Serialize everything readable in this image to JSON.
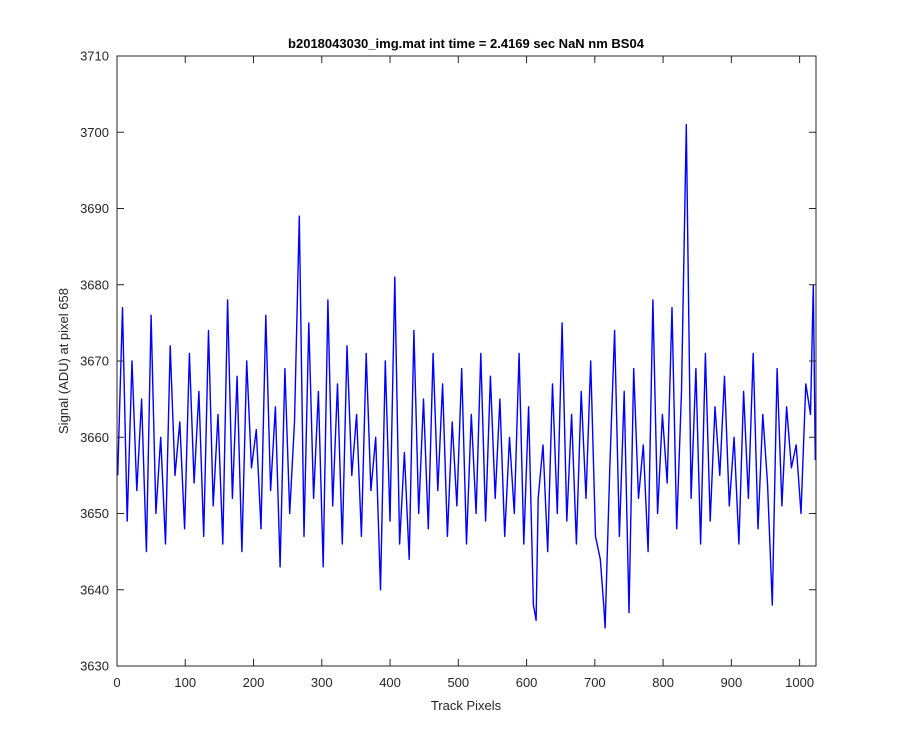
{
  "chart_data": {
    "type": "line",
    "title": "b2018043030_img.mat int time = 2.4169 sec  NaN nm BS04",
    "xlabel": "Track Pixels",
    "ylabel": "Signal (ADU) at pixel 658",
    "xlim": [
      0,
      1024
    ],
    "ylim": [
      3630,
      3710
    ],
    "xticks": [
      0,
      100,
      200,
      300,
      400,
      500,
      600,
      700,
      800,
      900,
      1000
    ],
    "yticks": [
      3630,
      3640,
      3650,
      3660,
      3670,
      3680,
      3690,
      3700,
      3710
    ],
    "grid": false,
    "legend": "none",
    "series": [
      {
        "color": "#0000ff",
        "x": [
          1,
          8,
          15,
          22,
          29,
          36,
          43,
          50,
          57,
          64,
          71,
          78,
          85,
          92,
          99,
          106,
          113,
          120,
          127,
          134,
          141,
          148,
          155,
          162,
          169,
          176,
          183,
          190,
          197,
          204,
          211,
          218,
          225,
          232,
          239,
          246,
          253,
          260,
          267,
          274,
          281,
          288,
          295,
          302,
          309,
          316,
          323,
          330,
          337,
          344,
          351,
          358,
          365,
          372,
          379,
          386,
          393,
          400,
          407,
          414,
          421,
          428,
          435,
          442,
          449,
          456,
          463,
          470,
          477,
          484,
          491,
          498,
          505,
          512,
          519,
          526,
          533,
          540,
          547,
          554,
          561,
          568,
          575,
          582,
          589,
          596,
          603,
          610,
          614,
          617,
          624,
          631,
          638,
          645,
          652,
          659,
          666,
          673,
          680,
          687,
          694,
          701,
          708,
          713,
          715,
          722,
          729,
          736,
          743,
          750,
          757,
          764,
          771,
          778,
          785,
          792,
          799,
          806,
          813,
          820,
          827,
          834,
          841,
          848,
          855,
          862,
          869,
          876,
          883,
          890,
          897,
          904,
          911,
          918,
          925,
          932,
          939,
          946,
          953,
          960,
          967,
          974,
          981,
          988,
          995,
          1002,
          1009,
          1016,
          1020,
          1023
        ],
        "y": [
          3655,
          3677,
          3649,
          3670,
          3653,
          3665,
          3645,
          3676,
          3650,
          3660,
          3646,
          3672,
          3655,
          3662,
          3648,
          3671,
          3654,
          3666,
          3647,
          3674,
          3651,
          3663,
          3646,
          3678,
          3652,
          3668,
          3645,
          3670,
          3656,
          3661,
          3648,
          3676,
          3653,
          3664,
          3643,
          3669,
          3650,
          3662,
          3689,
          3647,
          3675,
          3652,
          3666,
          3643,
          3678,
          3651,
          3667,
          3646,
          3672,
          3655,
          3663,
          3647,
          3671,
          3653,
          3660,
          3640,
          3670,
          3649,
          3681,
          3646,
          3658,
          3644,
          3674,
          3650,
          3665,
          3648,
          3671,
          3653,
          3667,
          3647,
          3662,
          3651,
          3669,
          3646,
          3663,
          3650,
          3671,
          3649,
          3668,
          3652,
          3665,
          3647,
          3660,
          3650,
          3671,
          3646,
          3664,
          3638,
          3636,
          3652,
          3659,
          3645,
          3667,
          3650,
          3675,
          3649,
          3663,
          3646,
          3666,
          3652,
          3670,
          3647,
          3644,
          3638,
          3635,
          3656,
          3674,
          3647,
          3666,
          3637,
          3669,
          3652,
          3659,
          3645,
          3678,
          3650,
          3663,
          3654,
          3677,
          3648,
          3666,
          3701,
          3652,
          3669,
          3646,
          3671,
          3649,
          3664,
          3655,
          3668,
          3651,
          3660,
          3646,
          3666,
          3652,
          3671,
          3648,
          3663,
          3654,
          3638,
          3669,
          3651,
          3664,
          3656,
          3659,
          3650,
          3667,
          3663,
          3680,
          3657
        ]
      }
    ]
  }
}
